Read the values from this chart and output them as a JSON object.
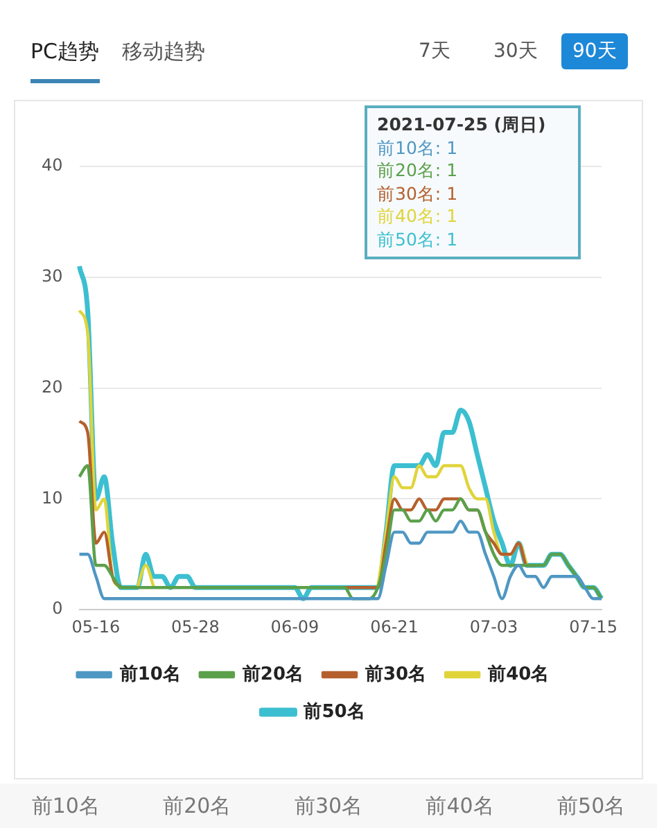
{
  "chart_data": {
    "type": "line",
    "categories": [
      null,
      null,
      "05-16",
      null,
      null,
      null,
      null,
      null,
      null,
      null,
      null,
      null,
      null,
      null,
      "05-28",
      null,
      null,
      null,
      null,
      null,
      null,
      null,
      null,
      null,
      null,
      null,
      "06-09",
      null,
      null,
      null,
      null,
      null,
      null,
      null,
      null,
      null,
      null,
      null,
      "06-21",
      null,
      null,
      null,
      null,
      null,
      null,
      null,
      null,
      null,
      null,
      null,
      "07-03",
      null,
      null,
      null,
      null,
      null,
      null,
      null,
      null,
      null,
      null,
      null,
      "07-15",
      null
    ],
    "series": [
      {
        "name": "前10名",
        "color": "#4f97c3",
        "values": [
          5,
          5,
          3,
          1,
          1,
          1,
          1,
          1,
          1,
          1,
          1,
          1,
          1,
          1,
          1,
          1,
          1,
          1,
          1,
          1,
          1,
          1,
          1,
          1,
          1,
          1,
          1,
          1,
          1,
          1,
          1,
          1,
          1,
          1,
          1,
          1,
          1,
          4,
          7,
          7,
          6,
          6,
          7,
          7,
          7,
          7,
          8,
          7,
          7,
          5,
          3,
          1,
          3,
          4,
          3,
          3,
          2,
          3,
          3,
          3,
          3,
          2,
          1,
          1
        ]
      },
      {
        "name": "前20名",
        "color": "#5ba04a",
        "values": [
          12,
          13,
          4,
          4,
          3,
          2,
          2,
          2,
          2,
          2,
          2,
          2,
          2,
          2,
          2,
          2,
          2,
          2,
          2,
          2,
          2,
          2,
          2,
          2,
          2,
          2,
          2,
          2,
          2,
          2,
          2,
          2,
          2,
          1,
          1,
          1,
          2,
          5,
          9,
          9,
          8,
          8,
          9,
          8,
          9,
          9,
          10,
          9,
          9,
          7,
          5,
          4,
          4,
          4,
          4,
          4,
          4,
          5,
          5,
          4,
          3,
          2,
          2,
          1
        ]
      },
      {
        "name": "前30名",
        "color": "#b5602c",
        "values": [
          17,
          16,
          6,
          7,
          3,
          2,
          null,
          null,
          null,
          null,
          null,
          null,
          null,
          null,
          null,
          null,
          null,
          null,
          null,
          null,
          null,
          null,
          null,
          null,
          null,
          null,
          null,
          null,
          null,
          null,
          null,
          null,
          2,
          2,
          2,
          2,
          2,
          6,
          10,
          9,
          9,
          10,
          9,
          9,
          10,
          10,
          10,
          9,
          9,
          7,
          6,
          5,
          5,
          6,
          4,
          4,
          null,
          null,
          null,
          null,
          null,
          null,
          null,
          null
        ]
      },
      {
        "name": "前40名",
        "color": "#e0d43a",
        "values": [
          27,
          25,
          9,
          10,
          3,
          2,
          null,
          2,
          4,
          2,
          null,
          null,
          null,
          null,
          null,
          null,
          null,
          null,
          null,
          null,
          null,
          null,
          null,
          null,
          null,
          null,
          null,
          null,
          null,
          null,
          null,
          null,
          null,
          null,
          null,
          null,
          2,
          7,
          12,
          11,
          11,
          13,
          12,
          12,
          13,
          13,
          13,
          11,
          10,
          10,
          7,
          5,
          5,
          6,
          4,
          null,
          null,
          null,
          null,
          null,
          null,
          null,
          null,
          null
        ]
      },
      {
        "name": "前50名",
        "color": "#3cbfd0",
        "values": [
          31,
          27,
          10,
          12,
          6,
          2,
          2,
          2,
          5,
          3,
          3,
          2,
          3,
          3,
          2,
          2,
          2,
          2,
          2,
          2,
          2,
          2,
          2,
          2,
          2,
          2,
          2,
          1,
          2,
          2,
          2,
          2,
          2,
          2,
          2,
          2,
          2,
          7,
          13,
          13,
          13,
          13,
          14,
          13,
          16,
          16,
          18,
          17,
          14,
          11,
          8,
          6,
          4,
          6,
          4,
          4,
          4,
          5,
          5,
          4,
          3,
          2,
          2,
          1
        ]
      }
    ],
    "ylim": [
      0,
      40
    ],
    "yticks": [
      0,
      10,
      20,
      30,
      40
    ],
    "grid": "y",
    "legend": "bottom",
    "marker": "none",
    "line_style": "solid",
    "annotations": [
      "PC趋势",
      "移动趋势",
      "7天",
      "30天",
      "90天",
      "2021-07-25 (周日)",
      "前10名: 1",
      "前20名: 1",
      "前30名: 1",
      "前40名: 1",
      "前50名: 1",
      "前10名",
      "前20名",
      "前30名",
      "前40名",
      "前50名"
    ]
  }
}
